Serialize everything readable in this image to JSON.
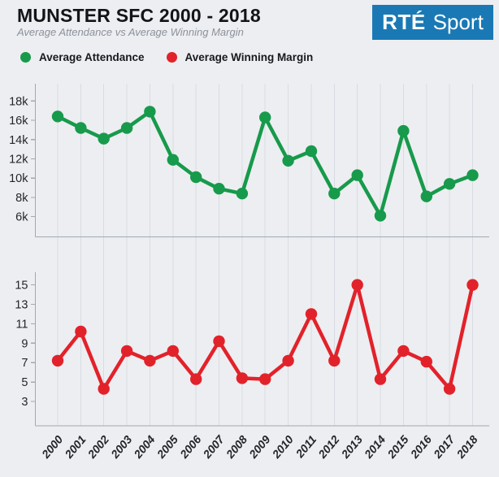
{
  "header": {
    "title": "MUNSTER SFC 2000 - 2018",
    "subtitle": "Average Attendance vs Average Winning Margin"
  },
  "logo": {
    "brand": "RTÉ",
    "product": "Sport",
    "bg_color": "#1a79b5",
    "text_color": "#ffffff"
  },
  "legend": {
    "items": [
      {
        "label": "Average Attendance",
        "color": "#179a4b"
      },
      {
        "label": "Average Winning Margin",
        "color": "#e2222a"
      }
    ]
  },
  "chart_data": {
    "type": "line",
    "title": "MUNSTER SFC 2000 - 2018",
    "subtitle": "Average Attendance vs Average Winning Margin",
    "legend_position": "top",
    "grid": "vertical-only",
    "categories": [
      "2000",
      "2001",
      "2002",
      "2003",
      "2004",
      "2005",
      "2006",
      "2007",
      "2008",
      "2009",
      "2010",
      "2011",
      "2012",
      "2013",
      "2014",
      "2015",
      "2016",
      "2017",
      "2018"
    ],
    "charts": [
      {
        "name": "Average Attendance",
        "color": "#179a4b",
        "values": [
          16400,
          15200,
          14100,
          15200,
          16900,
          11900,
          10100,
          8900,
          8400,
          16300,
          11800,
          12800,
          8400,
          10300,
          6100,
          14900,
          8100,
          9400,
          10300
        ],
        "tick_labels": [
          "18k",
          "16k",
          "14k",
          "12k",
          "10k",
          "8k",
          "6k"
        ],
        "tick_values": [
          18000,
          16000,
          14000,
          12000,
          10000,
          8000,
          6000
        ],
        "ylim": [
          3900,
          19800
        ]
      },
      {
        "name": "Average Winning Margin",
        "color": "#e2222a",
        "values": [
          7.2,
          10.2,
          4.3,
          8.2,
          7.2,
          8.2,
          5.3,
          9.2,
          5.4,
          5.3,
          7.2,
          12.0,
          7.2,
          15.0,
          5.3,
          8.2,
          7.1,
          4.3,
          15.0
        ],
        "tick_labels": [
          "15",
          "13",
          "11",
          "9",
          "7",
          "5",
          "3"
        ],
        "tick_values": [
          15,
          13,
          11,
          9,
          7,
          5,
          3
        ],
        "ylim": [
          0.5,
          16.3
        ]
      }
    ]
  },
  "colors": {
    "background": "#edeef1",
    "gridline": "#d8dce3",
    "axis": "#a0a9b4",
    "tick_text": "#22262c",
    "year_text": "#22262c"
  }
}
